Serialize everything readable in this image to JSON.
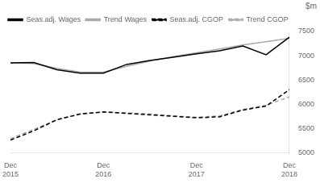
{
  "chart_data": {
    "type": "line",
    "ylabel": "$m",
    "categories": [
      "Dec\n2015",
      null,
      null,
      null,
      "Dec\n2016",
      null,
      null,
      null,
      "Dec\n2017",
      null,
      null,
      null,
      "Dec\n2018"
    ],
    "series": [
      {
        "name": "Seas.adj. Wages",
        "color": "#000000",
        "line_style": "solid",
        "values": [
          6850,
          6860,
          6710,
          6640,
          6640,
          6820,
          6900,
          6970,
          7040,
          7100,
          7200,
          7020,
          7380
        ]
      },
      {
        "name": "Trend Wages",
        "color": "#aaaaaa",
        "line_style": "solid",
        "values": [
          6850,
          6840,
          6740,
          6660,
          6660,
          6780,
          6890,
          6980,
          7060,
          7140,
          7220,
          7290,
          7360
        ]
      },
      {
        "name": "Seas.adj. CGOP",
        "color": "#000000",
        "line_style": "dashed",
        "values": [
          5260,
          5450,
          5680,
          5800,
          5840,
          5810,
          5780,
          5750,
          5720,
          5740,
          5880,
          5960,
          6300
        ]
      },
      {
        "name": "Trend CGOP",
        "color": "#aaaaaa",
        "line_style": "dashed",
        "values": [
          5290,
          5480,
          5680,
          5790,
          5840,
          5820,
          5800,
          5760,
          5730,
          5760,
          5890,
          5980,
          6150
        ]
      }
    ],
    "ylim": [
      5000,
      7500
    ],
    "yticks": [
      5000,
      5500,
      6000,
      6500,
      7000,
      7500
    ],
    "grid": false,
    "legend": "upper left"
  }
}
